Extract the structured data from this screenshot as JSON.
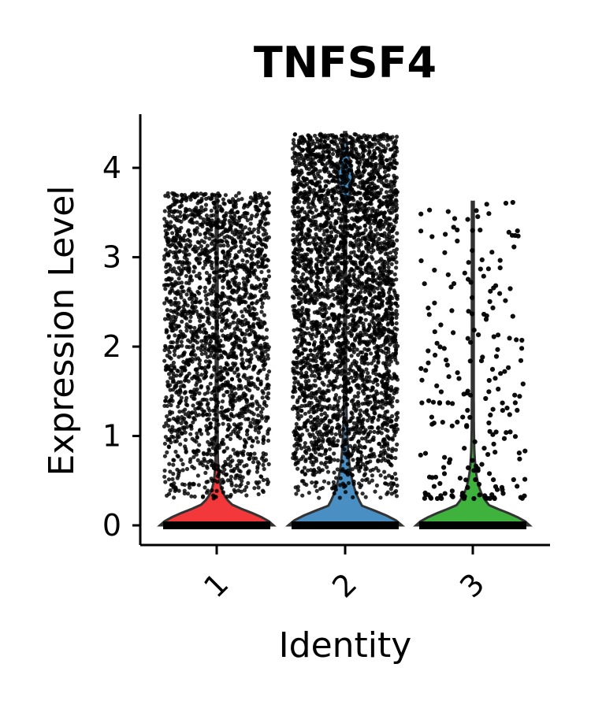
{
  "chart_data": {
    "type": "violin",
    "title": "TNFSF4",
    "xlabel": "Identity",
    "ylabel": "Expression Level",
    "categories": [
      "1",
      "2",
      "3"
    ],
    "yticks": [
      0,
      1,
      2,
      3,
      4
    ],
    "ylim": [
      -0.22,
      4.6
    ],
    "x_tick_rotation": "45 degrees",
    "legend": "none",
    "grid": false,
    "series": [
      {
        "category": "1",
        "color": "#F2383A",
        "violin_max": 3.7,
        "point_max": 3.72,
        "point_density": "high",
        "jitter_points_min": 0.3
      },
      {
        "category": "2",
        "color": "#4A8FC4",
        "violin_max": 4.4,
        "point_max": 4.38,
        "point_density": "very high",
        "jitter_points_min": 0.3
      },
      {
        "category": "3",
        "color": "#3FB23E",
        "violin_max": 3.62,
        "point_max": 3.62,
        "point_density": "low",
        "jitter_points_min": 0.3
      }
    ],
    "zero_value_cluster": true
  }
}
